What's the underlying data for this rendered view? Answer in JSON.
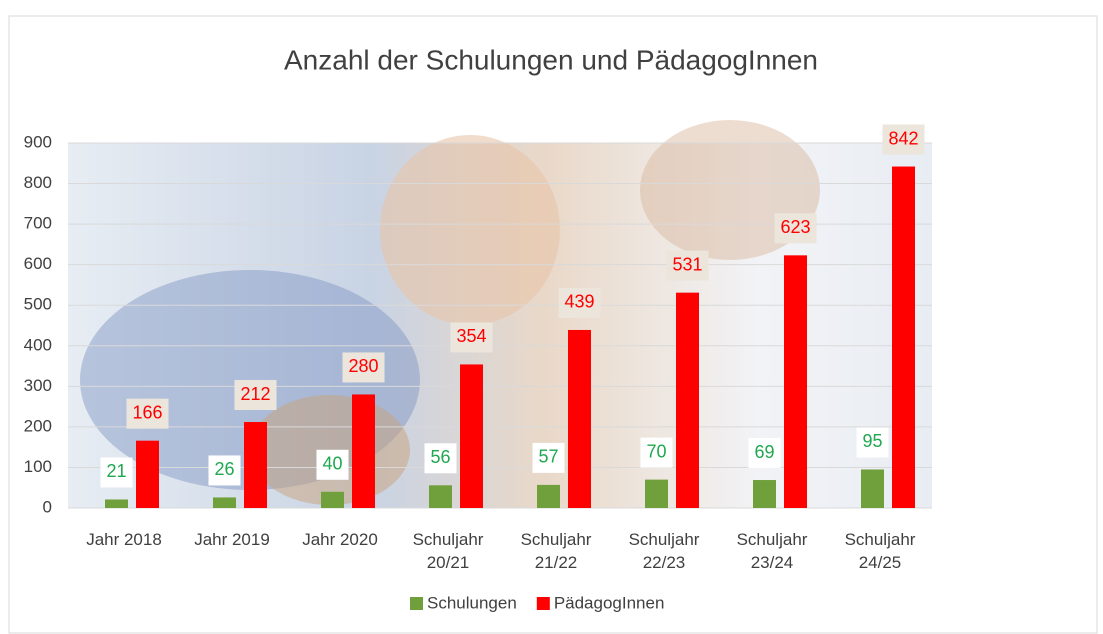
{
  "chart_data": {
    "type": "bar",
    "title": "Anzahl der Schulungen und PädagogInnen",
    "categories": [
      "Jahr 2018",
      "Jahr 2019",
      "Jahr 2020",
      "Schuljahr 20/21",
      "Schuljahr 21/22",
      "Schuljahr 22/23",
      "Schuljahr 23/24",
      "Schuljahr 24/25"
    ],
    "series": [
      {
        "name": "Schulungen",
        "color": "#70a03c",
        "label_color": "#1fa84f",
        "values": [
          21,
          26,
          40,
          56,
          57,
          70,
          69,
          95
        ]
      },
      {
        "name": "PädagogInnen",
        "color": "#ff0000",
        "label_color": "#ff0000",
        "values": [
          166,
          212,
          280,
          354,
          439,
          531,
          623,
          842
        ]
      }
    ],
    "ylim": [
      0,
      900
    ],
    "yticks": [
      0,
      100,
      200,
      300,
      400,
      500,
      600,
      700,
      800,
      900
    ],
    "grid": true,
    "legend": "bottom"
  }
}
